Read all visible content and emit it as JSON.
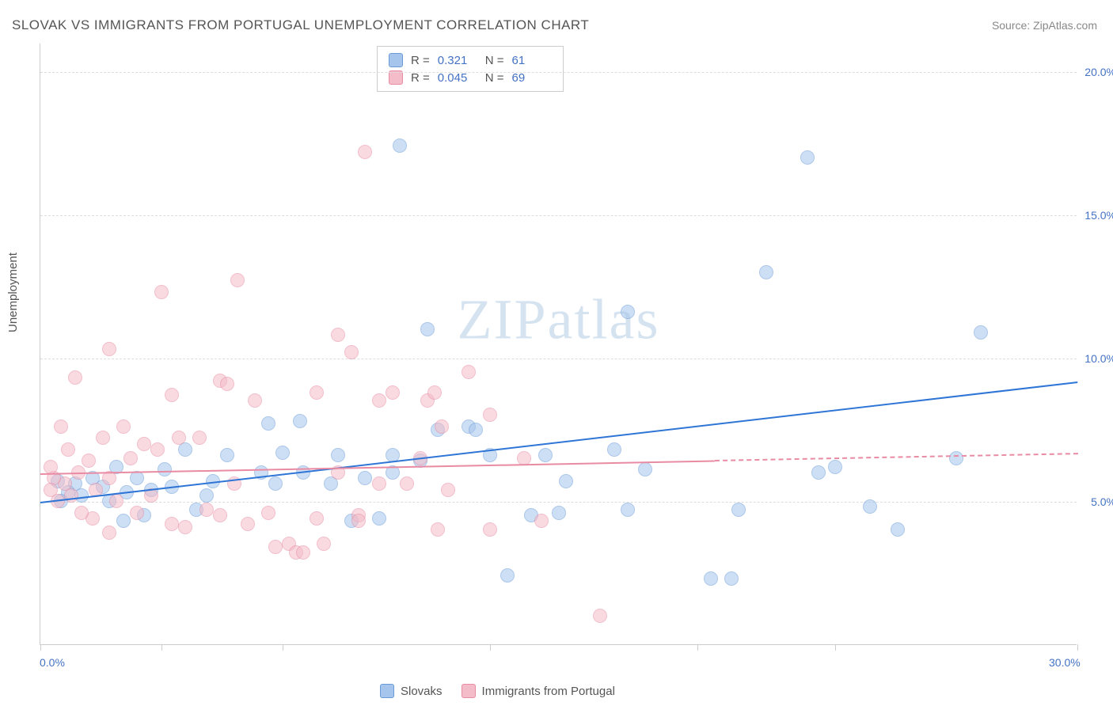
{
  "title": "SLOVAK VS IMMIGRANTS FROM PORTUGAL UNEMPLOYMENT CORRELATION CHART",
  "source": "Source: ZipAtlas.com",
  "ylabel": "Unemployment",
  "watermark_zip": "ZIP",
  "watermark_atlas": "atlas",
  "chart": {
    "type": "scatter",
    "xlim": [
      0,
      30
    ],
    "ylim": [
      0,
      21
    ],
    "xtick_positions": [
      0,
      3.5,
      7,
      13,
      19,
      23,
      30
    ],
    "xtick_labels": {
      "0": "0.0%",
      "30": "30.0%"
    },
    "ytick_positions": [
      5,
      10,
      15,
      20
    ],
    "ytick_labels": {
      "5": "5.0%",
      "10": "10.0%",
      "15": "15.0%",
      "20": "20.0%"
    },
    "background_color": "#ffffff",
    "grid_color": "#dddddd",
    "axis_color": "#cccccc",
    "tick_label_color": "#4472c4",
    "marker_radius": 9,
    "marker_opacity": 0.55,
    "series": [
      {
        "name": "Slovaks",
        "color_fill": "#a6c5ec",
        "color_stroke": "#6a9bd8",
        "R": "0.321",
        "N": "61",
        "trend": {
          "x1": 0,
          "y1": 5.0,
          "x2": 30,
          "y2": 9.2,
          "color": "#2e75d6",
          "width": 2,
          "dash_after_x": null
        },
        "points": [
          [
            10.4,
            17.4
          ],
          [
            22.2,
            17.0
          ],
          [
            17.0,
            11.6
          ],
          [
            21.0,
            13.0
          ],
          [
            27.2,
            10.9
          ],
          [
            11.2,
            11.0
          ],
          [
            14.2,
            4.5
          ],
          [
            14.6,
            6.6
          ],
          [
            15.0,
            4.6
          ],
          [
            15.2,
            5.7
          ],
          [
            17.0,
            4.7
          ],
          [
            17.5,
            6.1
          ],
          [
            20.0,
            2.3
          ],
          [
            20.2,
            4.7
          ],
          [
            16.6,
            6.8
          ],
          [
            26.5,
            6.5
          ],
          [
            24.0,
            4.8
          ],
          [
            24.8,
            4.0
          ],
          [
            19.4,
            2.3
          ],
          [
            12.4,
            7.6
          ],
          [
            12.6,
            7.5
          ],
          [
            13.0,
            6.6
          ],
          [
            13.5,
            2.4
          ],
          [
            9.8,
            4.4
          ],
          [
            10.2,
            6.6
          ],
          [
            10.2,
            6.0
          ],
          [
            11.0,
            6.4
          ],
          [
            7.0,
            6.7
          ],
          [
            7.5,
            7.8
          ],
          [
            6.6,
            7.7
          ],
          [
            6.4,
            6.0
          ],
          [
            6.8,
            5.6
          ],
          [
            7.6,
            6.0
          ],
          [
            8.4,
            5.6
          ],
          [
            8.6,
            6.6
          ],
          [
            9.0,
            4.3
          ],
          [
            9.4,
            5.8
          ],
          [
            5.0,
            5.7
          ],
          [
            5.4,
            6.6
          ],
          [
            4.8,
            5.2
          ],
          [
            4.5,
            4.7
          ],
          [
            3.8,
            5.5
          ],
          [
            3.6,
            6.1
          ],
          [
            3.2,
            5.4
          ],
          [
            2.8,
            5.8
          ],
          [
            2.5,
            5.3
          ],
          [
            2.2,
            6.2
          ],
          [
            2.0,
            5.0
          ],
          [
            1.8,
            5.5
          ],
          [
            1.5,
            5.8
          ],
          [
            1.2,
            5.2
          ],
          [
            1.0,
            5.6
          ],
          [
            0.8,
            5.3
          ],
          [
            0.6,
            5.0
          ],
          [
            0.5,
            5.7
          ],
          [
            2.4,
            4.3
          ],
          [
            3.0,
            4.5
          ],
          [
            4.2,
            6.8
          ],
          [
            11.5,
            7.5
          ],
          [
            22.5,
            6.0
          ],
          [
            23.0,
            6.2
          ]
        ]
      },
      {
        "name": "Immigigrants_from_Portugal",
        "label": "Immigrants from Portugal",
        "color_fill": "#f4bcc8",
        "color_stroke": "#e88ba3",
        "R": "0.045",
        "N": "69",
        "trend": {
          "x1": 0,
          "y1": 6.0,
          "x2": 30,
          "y2": 6.7,
          "color": "#e88ba3",
          "width": 2,
          "dash_after_x": 19.5
        },
        "points": [
          [
            9.4,
            17.2
          ],
          [
            3.5,
            12.3
          ],
          [
            5.7,
            12.7
          ],
          [
            8.6,
            10.8
          ],
          [
            9.0,
            10.2
          ],
          [
            5.2,
            9.2
          ],
          [
            5.4,
            9.1
          ],
          [
            2.0,
            10.3
          ],
          [
            8.0,
            8.8
          ],
          [
            8.0,
            4.4
          ],
          [
            9.8,
            8.5
          ],
          [
            10.2,
            8.8
          ],
          [
            11.2,
            8.5
          ],
          [
            11.4,
            8.8
          ],
          [
            12.4,
            9.5
          ],
          [
            13.0,
            8.0
          ],
          [
            13.0,
            4.0
          ],
          [
            11.0,
            6.5
          ],
          [
            11.5,
            4.0
          ],
          [
            11.6,
            7.6
          ],
          [
            9.8,
            5.6
          ],
          [
            8.2,
            3.5
          ],
          [
            7.2,
            3.5
          ],
          [
            7.4,
            3.2
          ],
          [
            7.6,
            3.2
          ],
          [
            6.6,
            4.6
          ],
          [
            9.2,
            4.5
          ],
          [
            9.2,
            4.3
          ],
          [
            8.6,
            6.0
          ],
          [
            6.2,
            8.5
          ],
          [
            6.0,
            4.2
          ],
          [
            5.6,
            5.6
          ],
          [
            5.2,
            4.5
          ],
          [
            4.8,
            4.7
          ],
          [
            4.6,
            7.2
          ],
          [
            4.2,
            4.1
          ],
          [
            4.0,
            7.2
          ],
          [
            3.8,
            4.2
          ],
          [
            3.4,
            6.8
          ],
          [
            3.2,
            5.2
          ],
          [
            3.0,
            7.0
          ],
          [
            2.8,
            4.6
          ],
          [
            2.6,
            6.5
          ],
          [
            2.4,
            7.6
          ],
          [
            2.2,
            5.0
          ],
          [
            2.0,
            5.8
          ],
          [
            1.8,
            7.2
          ],
          [
            1.6,
            5.4
          ],
          [
            1.5,
            4.4
          ],
          [
            1.4,
            6.4
          ],
          [
            1.2,
            4.6
          ],
          [
            1.1,
            6.0
          ],
          [
            1.0,
            9.3
          ],
          [
            0.9,
            5.2
          ],
          [
            0.8,
            6.8
          ],
          [
            0.7,
            5.6
          ],
          [
            0.6,
            7.6
          ],
          [
            0.5,
            5.0
          ],
          [
            0.4,
            5.8
          ],
          [
            0.3,
            5.4
          ],
          [
            0.3,
            6.2
          ],
          [
            10.6,
            5.6
          ],
          [
            11.8,
            5.4
          ],
          [
            14.0,
            6.5
          ],
          [
            14.5,
            4.3
          ],
          [
            16.2,
            1.0
          ],
          [
            3.8,
            8.7
          ],
          [
            6.8,
            3.4
          ],
          [
            2.0,
            3.9
          ]
        ]
      }
    ]
  },
  "legend_top": [
    {
      "swatch_fill": "#a6c5ec",
      "swatch_stroke": "#6a9bd8",
      "r_label": "R =",
      "r_val": "0.321",
      "n_label": "N =",
      "n_val": "61"
    },
    {
      "swatch_fill": "#f4bcc8",
      "swatch_stroke": "#e88ba3",
      "r_label": "R =",
      "r_val": "0.045",
      "n_label": "N =",
      "n_val": "69"
    }
  ],
  "legend_bottom": [
    {
      "swatch_fill": "#a6c5ec",
      "swatch_stroke": "#6a9bd8",
      "label": "Slovaks"
    },
    {
      "swatch_fill": "#f4bcc8",
      "swatch_stroke": "#e88ba3",
      "label": "Immigrants from Portugal"
    }
  ]
}
